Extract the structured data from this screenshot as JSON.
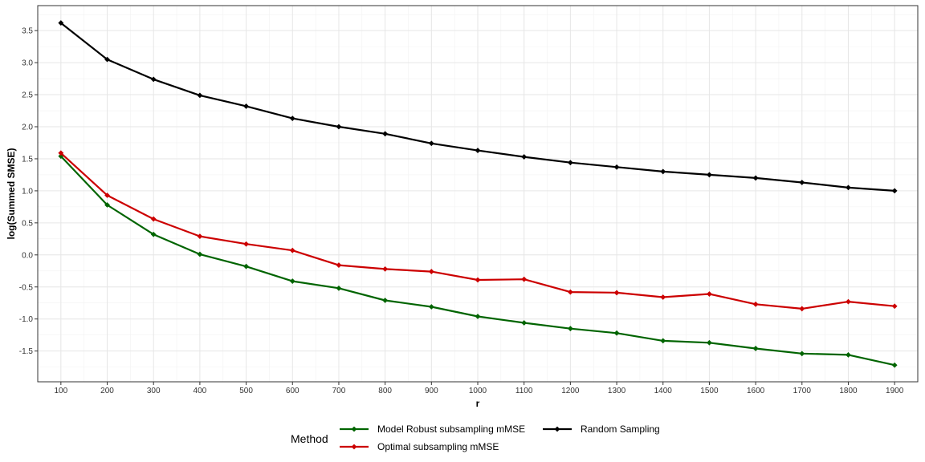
{
  "chart_data": {
    "type": "line",
    "title": "",
    "xlabel": "r",
    "ylabel": "log(Summed SMSE)",
    "x": [
      100,
      200,
      300,
      400,
      500,
      600,
      700,
      800,
      900,
      1000,
      1100,
      1200,
      1300,
      1400,
      1500,
      1600,
      1700,
      1800,
      1900
    ],
    "x_ticks": [
      "100",
      "200",
      "300",
      "400",
      "500",
      "600",
      "700",
      "800",
      "900",
      "1000",
      "1100",
      "1200",
      "1300",
      "1400",
      "1500",
      "1600",
      "1700",
      "1800",
      "1900"
    ],
    "xlim": [
      50,
      1950
    ],
    "ylim": [
      -1.98,
      3.89
    ],
    "y_ticks": [
      "-1.5",
      "-1.0",
      "-0.5",
      "0.0",
      "0.5",
      "1.0",
      "1.5",
      "2.0",
      "2.5",
      "3.0",
      "3.5"
    ],
    "y_tick_values": [
      -1.5,
      -1.0,
      -0.5,
      0.0,
      0.5,
      1.0,
      1.5,
      2.0,
      2.5,
      3.0,
      3.5
    ],
    "grid": true,
    "legend": {
      "title": "Method",
      "position": "bottom"
    },
    "series": [
      {
        "name": "Model Robust subsampling mMSE",
        "color": "#006400",
        "values": [
          1.54,
          0.78,
          0.32,
          0.01,
          -0.18,
          -0.41,
          -0.52,
          -0.71,
          -0.81,
          -0.96,
          -1.06,
          -1.15,
          -1.22,
          -1.34,
          -1.37,
          -1.46,
          -1.54,
          -1.56,
          -1.72
        ]
      },
      {
        "name": "Optimal subsampling mMSE",
        "color": "#CC0000",
        "values": [
          1.59,
          0.93,
          0.56,
          0.29,
          0.17,
          0.07,
          -0.16,
          -0.22,
          -0.26,
          -0.39,
          -0.38,
          -0.58,
          -0.59,
          -0.66,
          -0.61,
          -0.77,
          -0.84,
          -0.73,
          -0.8
        ]
      },
      {
        "name": "Random Sampling",
        "color": "#000000",
        "values": [
          3.62,
          3.05,
          2.74,
          2.49,
          2.32,
          2.13,
          2.0,
          1.89,
          1.74,
          1.63,
          1.53,
          1.44,
          1.37,
          1.3,
          1.25,
          1.2,
          1.13,
          1.05,
          1.0
        ]
      }
    ]
  }
}
